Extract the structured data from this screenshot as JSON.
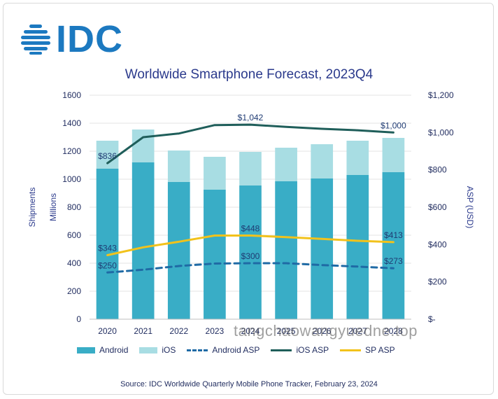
{
  "header": {
    "logo_text": "IDC"
  },
  "chart_data": {
    "type": "bar",
    "title": "Worldwide Smartphone Forecast, 2023Q4",
    "ylabel_left_outer": "Shipments",
    "ylabel_left_inner": "Millions",
    "ylabel_right": "ASP (USD)",
    "ylim": [
      0,
      1600
    ],
    "y_ticks": [
      "0",
      "200",
      "400",
      "600",
      "800",
      "1000",
      "1200",
      "1400",
      "1600"
    ],
    "y2lim": [
      0,
      1200
    ],
    "y2_ticks": [
      "$-",
      "$200",
      "$400",
      "$600",
      "$800",
      "$1,000",
      "$1,200"
    ],
    "categories": [
      "2020",
      "2021",
      "2022",
      "2023",
      "2024",
      "2025",
      "2026",
      "2027",
      "2028"
    ],
    "stacked": true,
    "series": [
      {
        "name": "Android",
        "kind": "bar",
        "color": "#39adc6",
        "values": [
          1075,
          1120,
          980,
          925,
          955,
          985,
          1005,
          1030,
          1050
        ]
      },
      {
        "name": "iOS",
        "kind": "bar",
        "color": "#a8dde3",
        "values": [
          200,
          235,
          225,
          235,
          240,
          240,
          245,
          245,
          245
        ]
      },
      {
        "name": "Android ASP",
        "kind": "line",
        "axis": "right",
        "style": "dashed",
        "color": "#1f6aa5",
        "values": [
          250,
          265,
          285,
          298,
          300,
          300,
          290,
          282,
          273
        ]
      },
      {
        "name": "iOS ASP",
        "kind": "line",
        "axis": "right",
        "style": "solid",
        "color": "#1f5e5a",
        "values": [
          836,
          975,
          995,
          1040,
          1042,
          1030,
          1020,
          1012,
          1000
        ]
      },
      {
        "name": "SP ASP",
        "kind": "line",
        "axis": "right",
        "style": "solid",
        "color": "#f2c21b",
        "values": [
          343,
          385,
          415,
          448,
          448,
          440,
          430,
          420,
          413
        ]
      }
    ],
    "annotations": [
      {
        "text": "$836",
        "series": "iOS ASP",
        "index": 0
      },
      {
        "text": "$1,042",
        "series": "iOS ASP",
        "index": 4
      },
      {
        "text": "$1,000",
        "series": "iOS ASP",
        "index": 8
      },
      {
        "text": "$343",
        "series": "SP ASP",
        "index": 0
      },
      {
        "text": "$448",
        "series": "SP ASP",
        "index": 4
      },
      {
        "text": "$413",
        "series": "SP ASP",
        "index": 8
      },
      {
        "text": "$250",
        "series": "Android ASP",
        "index": 0
      },
      {
        "text": "$300",
        "series": "Android ASP",
        "index": 4
      },
      {
        "text": "$273",
        "series": "Android ASP",
        "index": 8
      }
    ],
    "legend_position": "bottom"
  },
  "legend": [
    {
      "label": "Android",
      "type": "box",
      "color": "#39adc6"
    },
    {
      "label": "iOS",
      "type": "box",
      "color": "#a8dde3"
    },
    {
      "label": "Android ASP",
      "type": "dashed",
      "color": "#1f6aa5"
    },
    {
      "label": "iOS ASP",
      "type": "line",
      "color": "#1f5e5a"
    },
    {
      "label": "SP ASP",
      "type": "line",
      "color": "#f2c21b"
    }
  ],
  "source": "Source:  IDC Worldwide Quarterly Mobile Phone Tracker, February 23, 2024",
  "watermark": "tangchaowangyuedne.top"
}
